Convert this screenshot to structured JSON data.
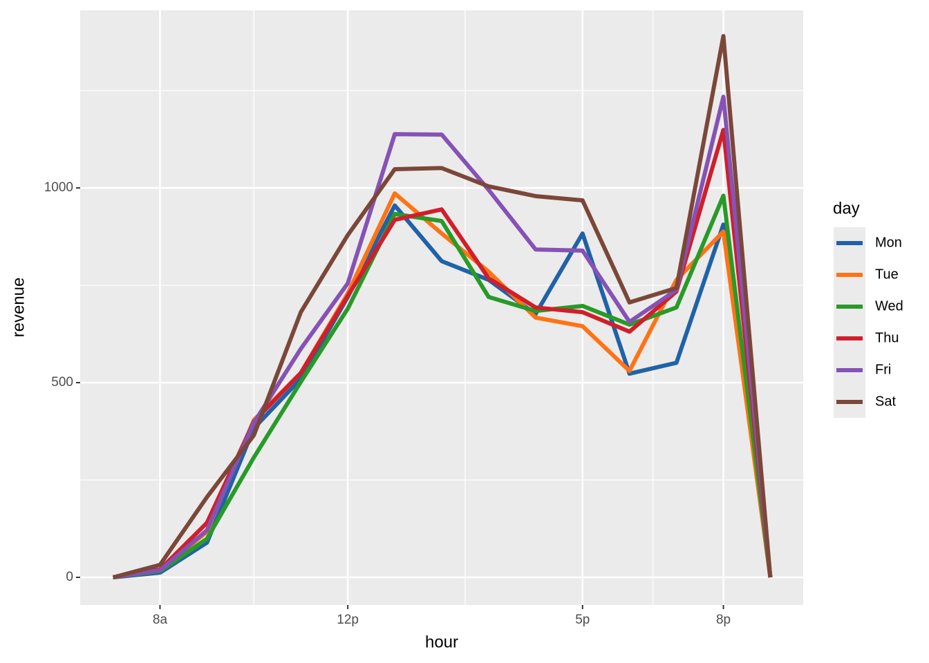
{
  "chart_data": {
    "type": "line",
    "x_label": "hour",
    "y_label": "revenue",
    "legend_title": "day",
    "x": [
      7,
      8,
      9,
      10,
      11,
      12,
      13,
      14,
      15,
      16,
      17,
      18,
      19,
      20,
      21
    ],
    "series": [
      {
        "name": "Mon",
        "color": "#2062a7",
        "values": [
          0,
          12,
          89,
          383,
          510,
          720,
          955,
          812,
          764,
          676,
          883,
          523,
          551,
          906,
          0
        ]
      },
      {
        "name": "Tue",
        "color": "#ff7315",
        "values": [
          0,
          18,
          117,
          404,
          525,
          729,
          986,
          883,
          785,
          667,
          645,
          530,
          764,
          888,
          0
        ]
      },
      {
        "name": "Wed",
        "color": "#289a28",
        "values": [
          0,
          16,
          99,
          308,
          502,
          690,
          933,
          915,
          720,
          684,
          697,
          649,
          693,
          980,
          0
        ]
      },
      {
        "name": "Thu",
        "color": "#d01f2b",
        "values": [
          0,
          20,
          140,
          400,
          525,
          723,
          918,
          945,
          768,
          693,
          681,
          631,
          734,
          1149,
          0
        ]
      },
      {
        "name": "Fri",
        "color": "#8652b5",
        "values": [
          0,
          18,
          121,
          397,
          587,
          755,
          1138,
          1137,
          995,
          842,
          839,
          656,
          738,
          1234,
          0
        ]
      },
      {
        "name": "Sat",
        "color": "#7b4739",
        "values": [
          0,
          32,
          206,
          365,
          681,
          879,
          1048,
          1051,
          1004,
          979,
          968,
          706,
          743,
          1390,
          0
        ]
      }
    ],
    "xlim": [
      6.3,
      21.7
    ],
    "xticks": [
      {
        "value": 8,
        "label": "8a"
      },
      {
        "value": 12,
        "label": "12p"
      },
      {
        "value": 17,
        "label": "5p"
      },
      {
        "value": 20,
        "label": "8p"
      }
    ],
    "x_minor_ticks": [
      10,
      14.5,
      18.5
    ],
    "ylim": [
      -71,
      1456
    ],
    "yticks": [
      0,
      500,
      1000
    ],
    "y_minor_ticks": [
      250,
      750,
      1250
    ],
    "grid": true,
    "legend_position": "right"
  }
}
